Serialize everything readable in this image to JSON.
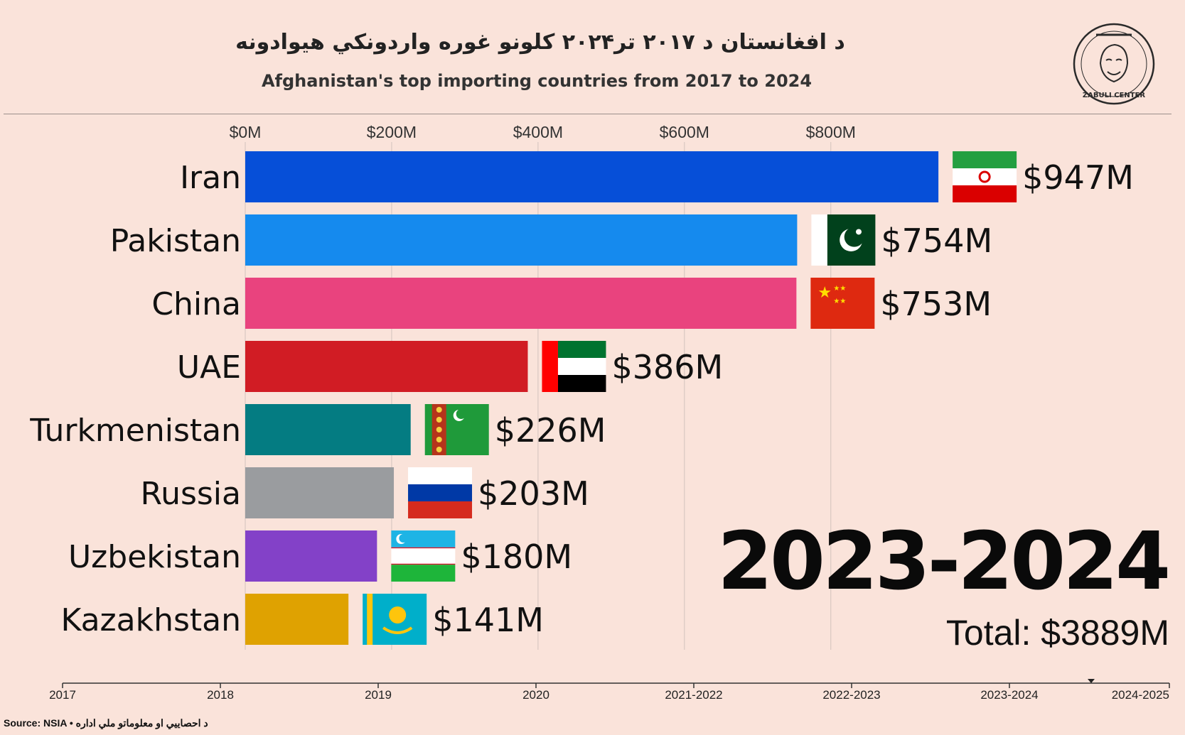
{
  "header": {
    "title_pashto": "د افغانستان د ۲۰۱۷ تر۲۰۲۴ کلونو غوره واردونکي هیوادونه",
    "title_english": "Afghanistan's top importing countries from 2017 to 2024",
    "logo_text": "ZABULI CENTER"
  },
  "colors": {
    "background": "#fae3da",
    "iran": "#064fd8",
    "pakistan": "#158aee",
    "china": "#e9437e",
    "uae": "#d11c24",
    "turkmenistan": "#047c82",
    "russia": "#9a9c9f",
    "uzbekistan": "#8341c8",
    "kazakhstan": "#dfa201"
  },
  "chart_data": {
    "type": "bar",
    "orientation": "horizontal",
    "categories": [
      "Iran",
      "Pakistan",
      "China",
      "UAE",
      "Turkmenistan",
      "Russia",
      "Uzbekistan",
      "Kazakhstan"
    ],
    "values": [
      947,
      754,
      753,
      386,
      226,
      203,
      180,
      141
    ],
    "value_labels": [
      "$947M",
      "$754M",
      "$753M",
      "$386M",
      "$226M",
      "$203M",
      "$180M",
      "$141M"
    ],
    "flags": [
      "iran-flag",
      "pakistan-flag",
      "china-flag",
      "uae-flag",
      "turkmenistan-flag",
      "russia-flag",
      "uzbekistan-flag",
      "kazakhstan-flag"
    ],
    "x_ticks": [
      0,
      200,
      400,
      600,
      800
    ],
    "x_tick_labels": [
      "$0M",
      "$200M",
      "$400M",
      "$600M",
      "$800M"
    ],
    "xlim": [
      0,
      1000
    ],
    "grid": "vertical",
    "period": "2023-2024",
    "total_label": "Total: $3889M",
    "timeline": {
      "labels": [
        "2017",
        "2018",
        "2019",
        "2020",
        "2021-2022",
        "2022-2023",
        "2023-2024",
        "2024-2025"
      ],
      "marker_position": 6.5
    }
  },
  "footer": {
    "source": "Source: NSIA • د احصاییي او معلوماتو ملي اداره"
  }
}
